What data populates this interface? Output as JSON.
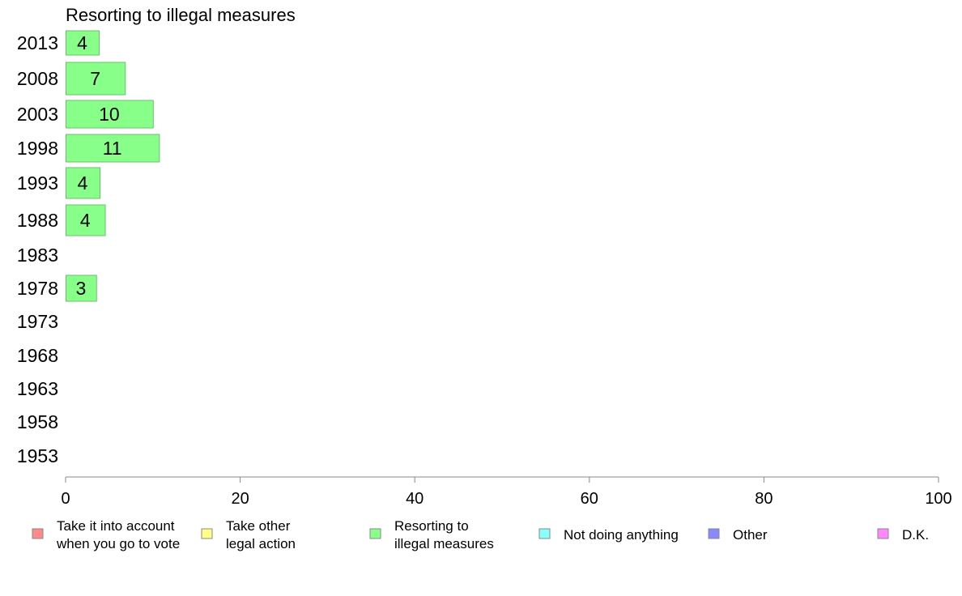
{
  "chart_data": {
    "type": "bar",
    "orientation": "horizontal",
    "title": "Resorting to illegal measures",
    "categories": [
      "2013",
      "2008",
      "2003",
      "1998",
      "1993",
      "1988",
      "1983",
      "1978",
      "1973",
      "1968",
      "1963",
      "1958",
      "1953"
    ],
    "values": [
      3.8,
      6.8,
      10.0,
      10.7,
      3.9,
      4.5,
      null,
      3.5,
      null,
      null,
      null,
      null,
      null
    ],
    "data_labels": [
      "4",
      "7",
      "10",
      "11",
      "4",
      "4",
      "",
      "3",
      "",
      "",
      "",
      "",
      ""
    ],
    "xlim": [
      0,
      100
    ],
    "xticks": [
      0,
      20,
      40,
      60,
      80,
      100
    ],
    "xtick_labels": [
      "0",
      "20",
      "40",
      "60",
      "80",
      "100"
    ],
    "xlabel": "",
    "ylabel": "",
    "grid": false,
    "bar_color": "#88ff88",
    "bar_edge_color": "#6cbf6c",
    "legend_position": "bottom",
    "legend": [
      {
        "lines": [
          "Take it into account",
          "when you go to vote"
        ],
        "color": "#ff8888"
      },
      {
        "lines": [
          "Take other",
          "legal action"
        ],
        "color": "#ffff88"
      },
      {
        "lines": [
          "Resorting to",
          "illegal measures"
        ],
        "color": "#88ff88"
      },
      {
        "lines": [
          "Not doing anything"
        ],
        "color": "#88ffff"
      },
      {
        "lines": [
          "Other"
        ],
        "color": "#8888ff"
      },
      {
        "lines": [
          "D.K."
        ],
        "color": "#ff88ff"
      }
    ]
  }
}
